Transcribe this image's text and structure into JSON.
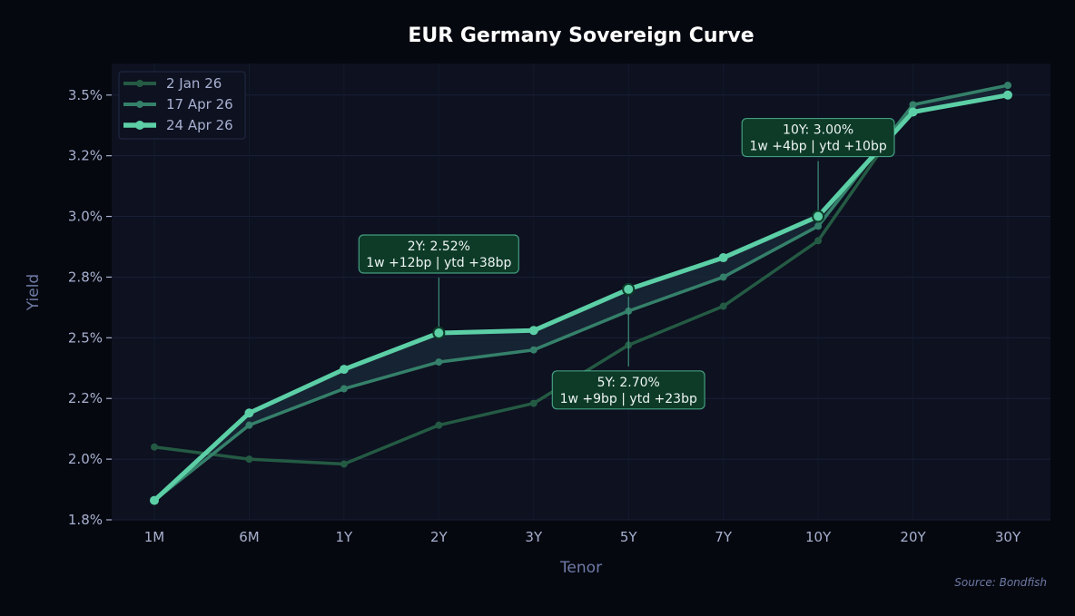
{
  "chart_data": {
    "type": "line",
    "title": "EUR Germany Sovereign Curve",
    "xlabel": "Tenor",
    "ylabel": "Yield",
    "source": "Source: Bondfish",
    "categories": [
      "1M",
      "6M",
      "1Y",
      "2Y",
      "3Y",
      "5Y",
      "7Y",
      "10Y",
      "20Y",
      "30Y"
    ],
    "ylim": [
      1.75,
      3.63
    ],
    "yticks": [
      1.75,
      2.0,
      2.25,
      2.5,
      2.75,
      3.0,
      3.25,
      3.5
    ],
    "ytick_labels": [
      "1.8%",
      "2.0%",
      "2.2%",
      "2.5%",
      "2.8%",
      "3.0%",
      "3.2%",
      "3.5%"
    ],
    "grid": true,
    "legend_position": "top-left",
    "series": [
      {
        "name": "2 Jan 26",
        "color": "#245a43",
        "values": [
          2.05,
          2.0,
          1.98,
          2.14,
          2.23,
          2.47,
          2.63,
          2.9,
          3.46,
          3.54
        ]
      },
      {
        "name": "17 Apr 26",
        "color": "#35806a",
        "values": [
          1.83,
          2.14,
          2.29,
          2.4,
          2.45,
          2.61,
          2.75,
          2.96,
          3.46,
          3.54
        ]
      },
      {
        "name": "24 Apr 26",
        "color": "#5ccfa6",
        "values": [
          1.83,
          2.19,
          2.37,
          2.52,
          2.53,
          2.7,
          2.83,
          3.0,
          3.43,
          3.5
        ]
      }
    ],
    "annotations": [
      {
        "tenor": "2Y",
        "line1": "2Y: 2.52%",
        "line2": "1w +12bp | ytd +38bp",
        "placement": "above"
      },
      {
        "tenor": "5Y",
        "line1": "5Y: 2.70%",
        "line2": "1w +9bp | ytd +23bp",
        "placement": "below"
      },
      {
        "tenor": "10Y",
        "line1": "10Y: 3.00%",
        "line2": "1w +4bp | ytd +10bp",
        "placement": "above"
      }
    ]
  }
}
